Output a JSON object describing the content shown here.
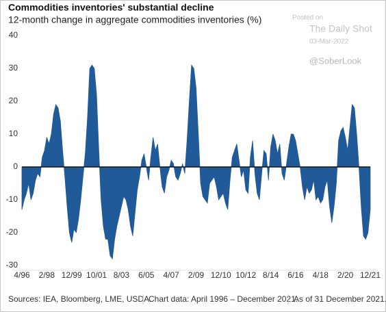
{
  "chart_data": {
    "type": "area",
    "title": "Commodities inventories' substantial decline",
    "subtitle": "12-month change in aggregate commodities inventories (%)",
    "watermark": [
      "Posted on",
      "The Daily Shot",
      "03-Mar-2022",
      "@SoberLook"
    ],
    "footer": [
      "Sources: IEA, Bloomberg, LME, USDA.",
      "Chart data: April 1996 – December 2021.",
      "As of 31 December 2021."
    ],
    "color": "#215a98",
    "categories": [
      "4/96",
      null,
      null,
      null,
      null,
      null,
      null,
      null,
      null,
      null,
      null,
      "2/98",
      null,
      null,
      null,
      null,
      null,
      null,
      null,
      null,
      null,
      null,
      "12/99",
      null,
      null,
      null,
      null,
      null,
      null,
      null,
      null,
      null,
      null,
      "10/01",
      null,
      null,
      null,
      null,
      null,
      null,
      null,
      null,
      null,
      null,
      "8/03",
      null,
      null,
      null,
      null,
      null,
      null,
      null,
      null,
      null,
      null,
      "6/05",
      null,
      null,
      null,
      null,
      null,
      null,
      null,
      null,
      null,
      null,
      "4/07",
      null,
      null,
      null,
      null,
      null,
      null,
      null,
      null,
      null,
      null,
      "2/09",
      null,
      null,
      null,
      null,
      null,
      null,
      null,
      null,
      null,
      null,
      "12/10",
      null,
      null,
      null,
      null,
      null,
      null,
      null,
      null,
      null,
      null,
      "10/12",
      null,
      null,
      null,
      null,
      null,
      null,
      null,
      null,
      null,
      null,
      "8/14",
      null,
      null,
      null,
      null,
      null,
      null,
      null,
      null,
      null,
      null,
      "6/16",
      null,
      null,
      null,
      null,
      null,
      null,
      null,
      null,
      null,
      null,
      "4/18",
      null,
      null,
      null,
      null,
      null,
      null,
      null,
      null,
      null,
      null,
      "2/20",
      null,
      null,
      null,
      null,
      null,
      null,
      null,
      null,
      null,
      null,
      "12/21"
    ],
    "values": [
      -13,
      -10,
      -8,
      -5,
      -10,
      -8,
      -4,
      -2,
      -3,
      3,
      5,
      9,
      7,
      10,
      16,
      19,
      18,
      14,
      5,
      -3,
      -12,
      -20,
      -23,
      -19,
      -20,
      -16,
      -10,
      -3,
      4,
      15,
      30,
      31,
      30,
      22,
      5,
      -10,
      -18,
      -22,
      -22,
      -27,
      -28,
      -22,
      -18,
      -15,
      -12,
      -9,
      -10,
      -13,
      -18,
      -21,
      -14,
      -7,
      -3,
      2,
      4,
      0,
      -4,
      3,
      9,
      5,
      7,
      0,
      -6,
      -8,
      -3,
      -1,
      2,
      1,
      -3,
      -4,
      -2,
      1,
      -2,
      8,
      20,
      31,
      30,
      24,
      10,
      -5,
      -9,
      -10,
      -11,
      -5,
      -4,
      -3,
      -6,
      -10,
      -9,
      -8,
      -11,
      -13,
      -4,
      3,
      5,
      7,
      2,
      -3,
      -1,
      -7,
      -8,
      3,
      8,
      -2,
      -8,
      -10,
      -2,
      5,
      4,
      -4,
      6,
      10,
      8,
      4,
      7,
      -2,
      -4,
      1,
      6,
      10,
      10,
      8,
      4,
      0,
      -6,
      -10,
      -6,
      -8,
      -7,
      -4,
      -10,
      -9,
      -11,
      -10,
      -6,
      -4,
      -12,
      -17,
      -12,
      -5,
      8,
      11,
      12,
      9,
      5,
      12,
      19,
      18,
      10,
      0,
      -12,
      -21,
      -22,
      -20,
      -13
    ],
    "ylim": [
      -30,
      40
    ],
    "yticks": [
      -30,
      -20,
      -10,
      0,
      10,
      20,
      30,
      40
    ],
    "grid": false
  }
}
